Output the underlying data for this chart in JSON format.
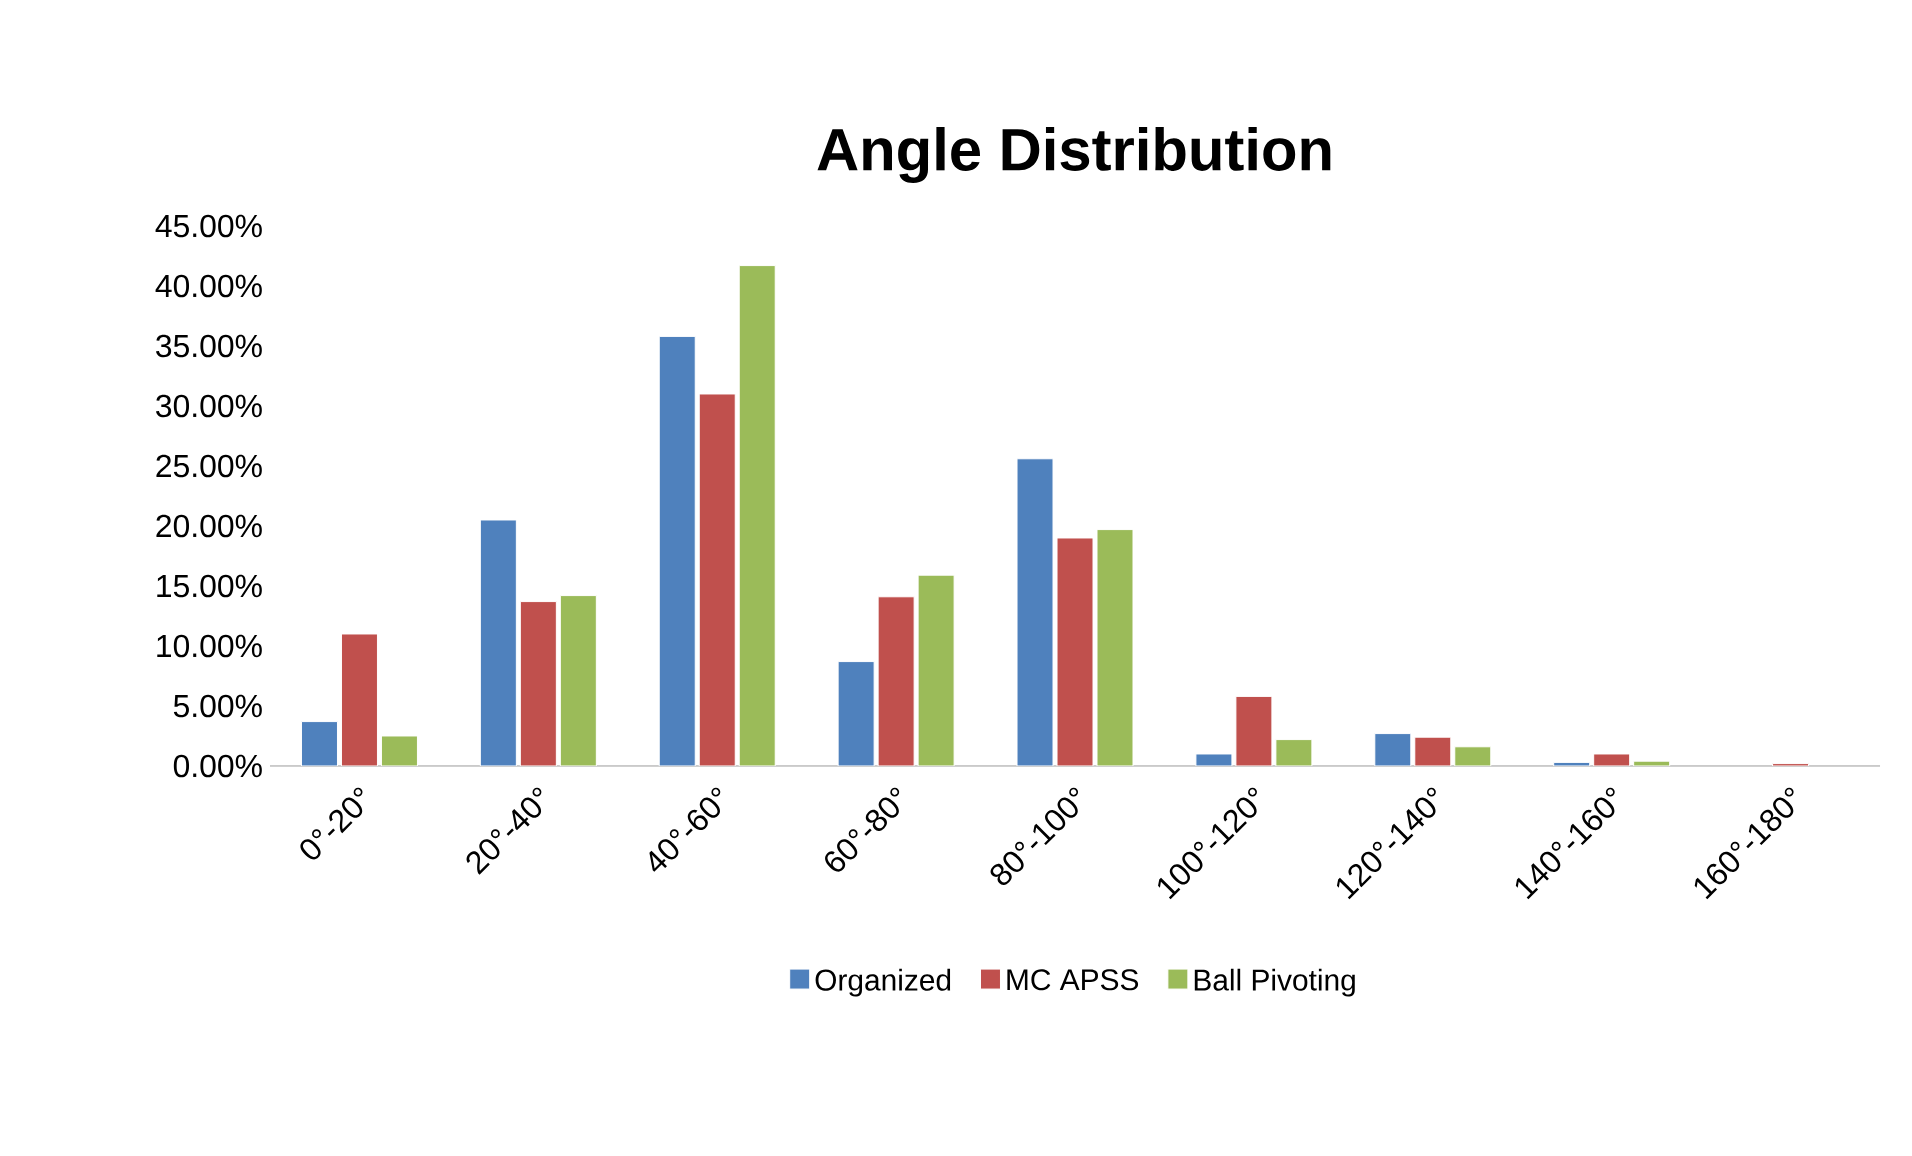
{
  "chart_data": {
    "type": "bar",
    "title": "Angle Distribution",
    "categories": [
      "0°-20°",
      "20°-40°",
      "40°-60°",
      "60°-80°",
      "80°-100°",
      "100°-120°",
      "120°-140°",
      "140°-160°",
      "160°-180°"
    ],
    "series": [
      {
        "name": "Organized",
        "color": "#4f81bd",
        "values": [
          3.7,
          20.5,
          35.8,
          8.7,
          25.6,
          1.0,
          2.7,
          0.3,
          null
        ]
      },
      {
        "name": "MC APSS",
        "color": "#c0504d",
        "values": [
          11.0,
          13.7,
          31.0,
          14.1,
          19.0,
          5.8,
          2.4,
          1.0,
          0.2
        ]
      },
      {
        "name": "Ball Pivoting",
        "color": "#9bbb59",
        "values": [
          2.5,
          14.2,
          41.7,
          15.9,
          19.7,
          2.2,
          1.6,
          0.4,
          null
        ]
      }
    ],
    "ylim": [
      0,
      45
    ],
    "yticks": [
      {
        "value": 0,
        "label": "0.00%"
      },
      {
        "value": 5,
        "label": "5.00%"
      },
      {
        "value": 10,
        "label": "10.00%"
      },
      {
        "value": 15,
        "label": "15.00%"
      },
      {
        "value": 20,
        "label": "20.00%"
      },
      {
        "value": 25,
        "label": "25.00%"
      },
      {
        "value": 30,
        "label": "30.00%"
      },
      {
        "value": 35,
        "label": "35.00%"
      },
      {
        "value": 40,
        "label": "40.00%"
      },
      {
        "value": 45,
        "label": "45.00%"
      }
    ],
    "legend": "bottom"
  }
}
